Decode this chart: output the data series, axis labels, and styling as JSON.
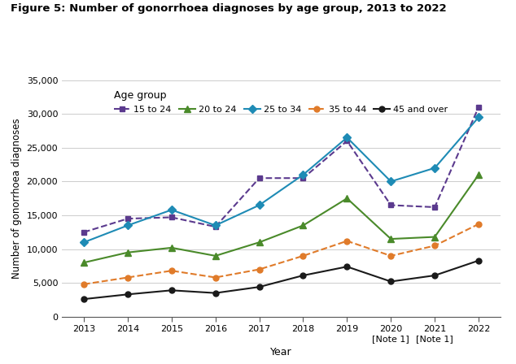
{
  "title": "Figure 5: Number of gonorrhoea diagnoses by age group, 2013 to 2022",
  "xlabel": "Year",
  "ylabel": "Number of gonorrhoea diagnoses",
  "years": [
    2013,
    2014,
    2015,
    2016,
    2017,
    2018,
    2019,
    2020,
    2021,
    2022
  ],
  "x_tick_labels": [
    "2013",
    "2014",
    "2015",
    "2016",
    "2017",
    "2018",
    "2019",
    "2020\n[Note 1]",
    "2021\n[Note 1]",
    "2022"
  ],
  "series": [
    {
      "label": "15 to 24",
      "color": "#5B3A8E",
      "linestyle": "dashed",
      "marker": "s",
      "markersize": 5,
      "values": [
        12500,
        14500,
        14700,
        13300,
        20500,
        20500,
        26000,
        16500,
        16200,
        31000
      ]
    },
    {
      "label": "20 to 24",
      "color": "#4A8A2A",
      "linestyle": "solid",
      "marker": "^",
      "markersize": 6,
      "values": [
        8000,
        9500,
        10200,
        9000,
        11000,
        13500,
        17500,
        11500,
        11800,
        21000
      ]
    },
    {
      "label": "25 to 34",
      "color": "#1E8BB5",
      "linestyle": "solid",
      "marker": "D",
      "markersize": 5,
      "values": [
        11000,
        13500,
        15800,
        13500,
        16500,
        21000,
        26500,
        20000,
        22000,
        29500
      ]
    },
    {
      "label": "35 to 44",
      "color": "#E07B2A",
      "linestyle": "dashed",
      "marker": "o",
      "markersize": 5,
      "values": [
        4800,
        5800,
        6800,
        5800,
        7000,
        9000,
        11200,
        9000,
        10500,
        13700
      ]
    },
    {
      "label": "45 and over",
      "color": "#1A1A1A",
      "linestyle": "solid",
      "marker": "o",
      "markersize": 5,
      "values": [
        2600,
        3300,
        3900,
        3500,
        4400,
        6100,
        7400,
        5200,
        6100,
        8300
      ]
    }
  ],
  "ylim": [
    0,
    35000
  ],
  "yticks": [
    0,
    5000,
    10000,
    15000,
    20000,
    25000,
    30000,
    35000
  ],
  "legend_title": "Age group",
  "background_color": "#ffffff"
}
